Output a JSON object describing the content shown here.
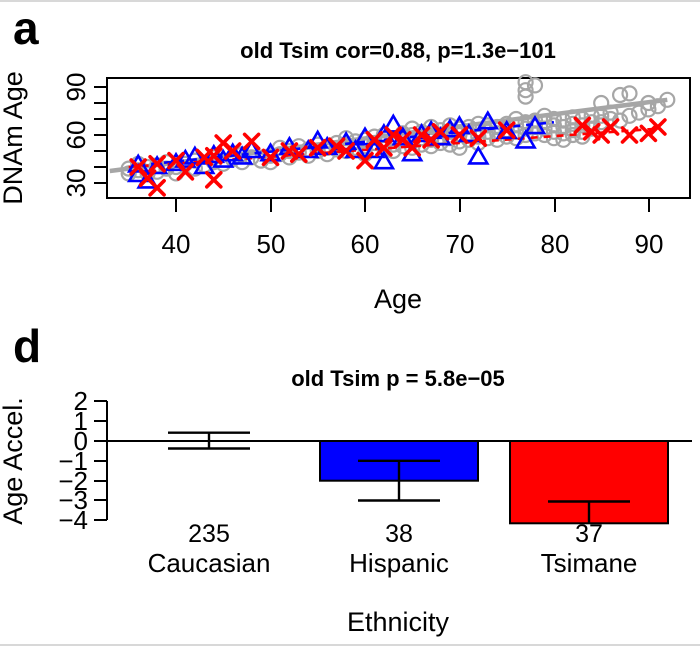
{
  "chart_data": [
    {
      "panel_label": "a",
      "type": "scatter",
      "title": "old Tsim cor=0.88, p=1.3e−101",
      "xlabel": "Age",
      "ylabel": "DNAm Age",
      "xlim": [
        32.7,
        94.4
      ],
      "ylim": [
        20.6,
        95.6
      ],
      "x_ticks": [
        40,
        50,
        60,
        70,
        80,
        90
      ],
      "x_tick_labels": [
        "40",
        "50",
        "60",
        "70",
        "80",
        "90"
      ],
      "y_ticks": [
        30,
        40,
        50,
        60,
        70,
        80,
        90
      ],
      "y_tick_labels": [
        "30",
        "60",
        "90"
      ],
      "grid": false,
      "legend": "none",
      "series": [
        {
          "name": "Caucasian",
          "marker": "circle",
          "color": "#a6a6a6",
          "points": [
            [
              35,
              39
            ],
            [
              35,
              36
            ],
            [
              36,
              38
            ],
            [
              36,
              42
            ],
            [
              37,
              36
            ],
            [
              37,
              40
            ],
            [
              38,
              37
            ],
            [
              38,
              41
            ],
            [
              39,
              39
            ],
            [
              39,
              43
            ],
            [
              40,
              36
            ],
            [
              40,
              40
            ],
            [
              41,
              42
            ],
            [
              42,
              39
            ],
            [
              42,
              44
            ],
            [
              43,
              41
            ],
            [
              44,
              43
            ],
            [
              44,
              46
            ],
            [
              45,
              42
            ],
            [
              46,
              45
            ],
            [
              47,
              43
            ],
            [
              47,
              48
            ],
            [
              48,
              46
            ],
            [
              49,
              44
            ],
            [
              50,
              47
            ],
            [
              50,
              43
            ],
            [
              51,
              48
            ],
            [
              51,
              52
            ],
            [
              52,
              46
            ],
            [
              52,
              50
            ],
            [
              53,
              49
            ],
            [
              53,
              53
            ],
            [
              54,
              47
            ],
            [
              54,
              51
            ],
            [
              55,
              50
            ],
            [
              55,
              54
            ],
            [
              56,
              48
            ],
            [
              56,
              52
            ],
            [
              57,
              51
            ],
            [
              57,
              55
            ],
            [
              58,
              50
            ],
            [
              58,
              54
            ],
            [
              58,
              58
            ],
            [
              59,
              52
            ],
            [
              59,
              56
            ],
            [
              60,
              48
            ],
            [
              60,
              53
            ],
            [
              60,
              57
            ],
            [
              61,
              51
            ],
            [
              61,
              55
            ],
            [
              61,
              59
            ],
            [
              62,
              52
            ],
            [
              62,
              56
            ],
            [
              62,
              60
            ],
            [
              63,
              50
            ],
            [
              63,
              54
            ],
            [
              63,
              58
            ],
            [
              64,
              53
            ],
            [
              64,
              57
            ],
            [
              64,
              61
            ],
            [
              65,
              52
            ],
            [
              65,
              56
            ],
            [
              65,
              60
            ],
            [
              65,
              64
            ],
            [
              66,
              54
            ],
            [
              66,
              58
            ],
            [
              66,
              62
            ],
            [
              67,
              53
            ],
            [
              67,
              57
            ],
            [
              67,
              61
            ],
            [
              67,
              65
            ],
            [
              68,
              55
            ],
            [
              68,
              59
            ],
            [
              68,
              63
            ],
            [
              69,
              54
            ],
            [
              69,
              58
            ],
            [
              69,
              62
            ],
            [
              69,
              66
            ],
            [
              70,
              52
            ],
            [
              70,
              56
            ],
            [
              70,
              60
            ],
            [
              70,
              64
            ],
            [
              71,
              57
            ],
            [
              71,
              61
            ],
            [
              71,
              65
            ],
            [
              72,
              55
            ],
            [
              72,
              59
            ],
            [
              72,
              63
            ],
            [
              72,
              67
            ],
            [
              73,
              58
            ],
            [
              73,
              62
            ],
            [
              73,
              66
            ],
            [
              74,
              57
            ],
            [
              74,
              61
            ],
            [
              74,
              65
            ],
            [
              75,
              59
            ],
            [
              75,
              63
            ],
            [
              75,
              67
            ],
            [
              76,
              58
            ],
            [
              76,
              62
            ],
            [
              76,
              66
            ],
            [
              76,
              70
            ],
            [
              77,
              60
            ],
            [
              77,
              64
            ],
            [
              77,
              68
            ],
            [
              77,
              84
            ],
            [
              77,
              88
            ],
            [
              77,
              93
            ],
            [
              78,
              61
            ],
            [
              78,
              65
            ],
            [
              78,
              69
            ],
            [
              78,
              91
            ],
            [
              79,
              60
            ],
            [
              79,
              64
            ],
            [
              79,
              68
            ],
            [
              79,
              72
            ],
            [
              80,
              58
            ],
            [
              80,
              62
            ],
            [
              80,
              66
            ],
            [
              80,
              70
            ],
            [
              81,
              57
            ],
            [
              81,
              61
            ],
            [
              81,
              65
            ],
            [
              81,
              69
            ],
            [
              82,
              60
            ],
            [
              82,
              63
            ],
            [
              82,
              67
            ],
            [
              82,
              71
            ],
            [
              83,
              59
            ],
            [
              83,
              62
            ],
            [
              83,
              66
            ],
            [
              83,
              70
            ],
            [
              84,
              64
            ],
            [
              84,
              68
            ],
            [
              84,
              72
            ],
            [
              85,
              66
            ],
            [
              85,
              68
            ],
            [
              85,
              72
            ],
            [
              85,
              80
            ],
            [
              86,
              70
            ],
            [
              86,
              74
            ],
            [
              87,
              69
            ],
            [
              87,
              85
            ],
            [
              88,
              72
            ],
            [
              88,
              86
            ],
            [
              89,
              74
            ],
            [
              90,
              76
            ],
            [
              90,
              80
            ],
            [
              91,
              78
            ],
            [
              92,
              82
            ]
          ]
        },
        {
          "name": "Hispanic",
          "marker": "triangle",
          "color": "#0000ff",
          "points": [
            [
              36,
              35
            ],
            [
              36,
              41
            ],
            [
              37,
              31
            ],
            [
              38,
              40
            ],
            [
              40,
              42
            ],
            [
              41,
              44
            ],
            [
              42,
              46
            ],
            [
              43,
              40
            ],
            [
              44,
              47
            ],
            [
              45,
              44
            ],
            [
              46,
              48
            ],
            [
              47,
              46
            ],
            [
              48,
              50
            ],
            [
              50,
              48
            ],
            [
              52,
              52
            ],
            [
              54,
              50
            ],
            [
              55,
              56
            ],
            [
              56,
              52
            ],
            [
              58,
              55
            ],
            [
              59,
              50
            ],
            [
              60,
              58
            ],
            [
              61,
              50
            ],
            [
              62,
              43
            ],
            [
              62,
              60
            ],
            [
              63,
              66
            ],
            [
              64,
              58
            ],
            [
              65,
              48
            ],
            [
              66,
              60
            ],
            [
              67,
              62
            ],
            [
              68,
              58
            ],
            [
              69,
              63
            ],
            [
              70,
              65
            ],
            [
              71,
              60
            ],
            [
              72,
              46
            ],
            [
              73,
              68
            ],
            [
              75,
              62
            ],
            [
              77,
              56
            ],
            [
              78,
              65
            ]
          ]
        },
        {
          "name": "Tsimane",
          "marker": "x",
          "color": "#ff0000",
          "points": [
            [
              36,
              40
            ],
            [
              37,
              33
            ],
            [
              38,
              27
            ],
            [
              38,
              42
            ],
            [
              40,
              44
            ],
            [
              41,
              37
            ],
            [
              43,
              46
            ],
            [
              44,
              32
            ],
            [
              44,
              47
            ],
            [
              45,
              55
            ],
            [
              46,
              50
            ],
            [
              48,
              56
            ],
            [
              50,
              46
            ],
            [
              52,
              50
            ],
            [
              53,
              48
            ],
            [
              55,
              52
            ],
            [
              57,
              53
            ],
            [
              58,
              50
            ],
            [
              60,
              44
            ],
            [
              61,
              57
            ],
            [
              62,
              52
            ],
            [
              63,
              60
            ],
            [
              64,
              57
            ],
            [
              65,
              52
            ],
            [
              66,
              60
            ],
            [
              67,
              57
            ],
            [
              68,
              62
            ],
            [
              70,
              60
            ],
            [
              72,
              58
            ],
            [
              75,
              63
            ],
            [
              83,
              66
            ],
            [
              84,
              62
            ],
            [
              85,
              60
            ],
            [
              86,
              65
            ],
            [
              88,
              60
            ],
            [
              90,
              61
            ],
            [
              91,
              65
            ]
          ]
        }
      ],
      "lines": [
        {
          "name": "caucasian-fit",
          "color": "#a6a6a6",
          "dash": "solid",
          "from": [
            33,
            37.5
          ],
          "to": [
            92,
            82
          ]
        },
        {
          "name": "hispanic-fit",
          "color": "#0000ff",
          "dash": "dashed",
          "from": [
            36,
            41
          ],
          "to": [
            80,
            68
          ]
        },
        {
          "name": "tsimane-fit",
          "color": "#ff0000",
          "dash": "dashed",
          "from": [
            35,
            40
          ],
          "to": [
            91,
            64
          ]
        }
      ]
    },
    {
      "panel_label": "d",
      "type": "bar",
      "title": "old Tsim p = 5.8e−05",
      "xlabel": "Ethnicity",
      "ylabel": "Age Accel.",
      "ylim": [
        -4.4,
        2.3
      ],
      "y_ticks": [
        2,
        1,
        0,
        -1,
        -2,
        -3,
        -4
      ],
      "y_tick_labels": [
        "2",
        "1",
        "0",
        "−1",
        "−2",
        "−3",
        "−4"
      ],
      "categories": [
        "Caucasian",
        "Hispanic",
        "Tsimane"
      ],
      "values": [
        0.0,
        -2.0,
        -4.15
      ],
      "errors": [
        {
          "high": 0.42,
          "low": -0.38,
          "caps": "both"
        },
        {
          "high": -1.0,
          "low": -3.0,
          "caps": "both"
        },
        {
          "high": -3.05,
          "low": -4.15,
          "caps": "high"
        }
      ],
      "counts": [
        "235",
        "38",
        "37"
      ],
      "bar_colors": [
        "#ffffff",
        "#0000ff",
        "#ff0000"
      ],
      "count_color": "#bdbdbd",
      "grid": false
    }
  ]
}
